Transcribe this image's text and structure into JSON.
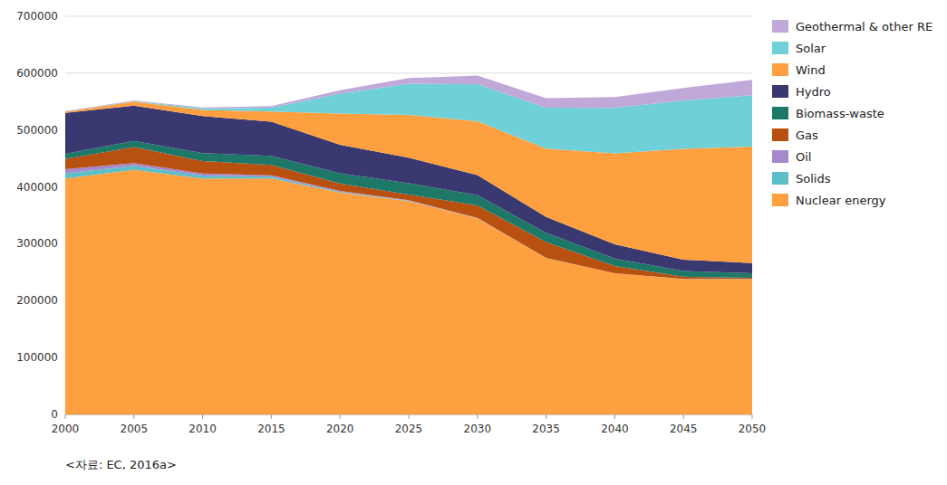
{
  "chart_data": {
    "type": "area",
    "stacked": true,
    "grid": true,
    "legend": "right",
    "annotations": [
      "<자료: EC, 2016a>"
    ],
    "x": [
      2000,
      2005,
      2010,
      2015,
      2020,
      2025,
      2030,
      2035,
      2040,
      2045,
      2050
    ],
    "xlim": [
      2000,
      2050
    ],
    "xticks": [
      2000,
      2005,
      2010,
      2015,
      2020,
      2025,
      2030,
      2035,
      2040,
      2045,
      2050
    ],
    "ylim": [
      0,
      700000
    ],
    "yticks": [
      0,
      100000,
      200000,
      300000,
      400000,
      500000,
      600000,
      700000
    ],
    "series": [
      {
        "name": "Nuclear energy",
        "color": "#FFA040",
        "values": [
          415000,
          430000,
          415000,
          415000,
          390000,
          375000,
          345000,
          275000,
          248000,
          238000,
          238000
        ]
      },
      {
        "name": "Solids",
        "color": "#5BBEC8",
        "values": [
          9000,
          7000,
          5000,
          3000,
          1500,
          800,
          300,
          100,
          50,
          50,
          50
        ]
      },
      {
        "name": "Oil",
        "color": "#A888CC",
        "values": [
          7000,
          5000,
          3500,
          2500,
          1500,
          800,
          300,
          100,
          50,
          30,
          30
        ]
      },
      {
        "name": "Gas",
        "color": "#B85010",
        "values": [
          18000,
          28000,
          22000,
          18000,
          13000,
          10000,
          22000,
          28000,
          13000,
          4000,
          2000
        ]
      },
      {
        "name": "Biomass-waste",
        "color": "#1E7868",
        "values": [
          9000,
          11000,
          14000,
          16000,
          18000,
          20000,
          18000,
          16000,
          13000,
          10000,
          8000
        ]
      },
      {
        "name": "Hydro",
        "color": "#3A3870",
        "values": [
          72000,
          62000,
          65000,
          60000,
          50000,
          45000,
          35000,
          28000,
          25000,
          20000,
          18000
        ]
      },
      {
        "name": "Wind",
        "color": "#FFA040",
        "values": [
          2000,
          7000,
          11000,
          18000,
          55000,
          75000,
          95000,
          120000,
          160000,
          195000,
          205000
        ]
      },
      {
        "name": "Solar",
        "color": "#70D0D8",
        "values": [
          400,
          800,
          2500,
          7000,
          35000,
          55000,
          65000,
          72000,
          80000,
          85000,
          90000
        ]
      },
      {
        "name": "Geothermal & other RE",
        "color": "#C0A8D8",
        "values": [
          800,
          1200,
          1800,
          2500,
          6000,
          10000,
          15000,
          17000,
          19000,
          22000,
          27000
        ]
      }
    ]
  }
}
